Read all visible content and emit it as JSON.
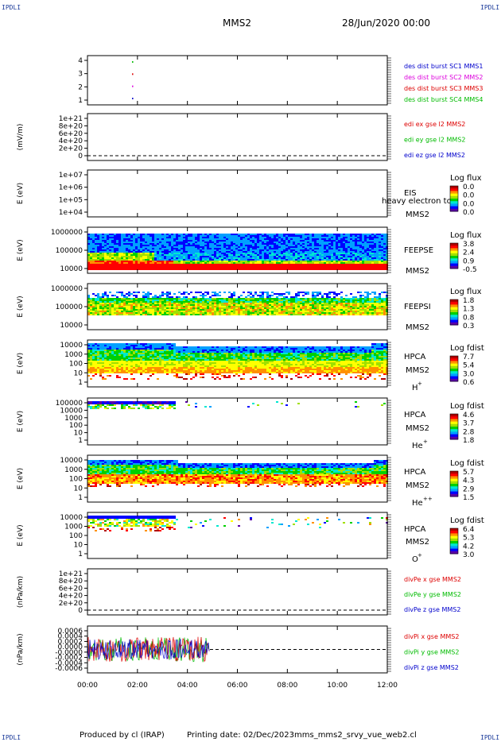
{
  "header": {
    "corner_label": "IPDLI",
    "title": "MMS2",
    "date": "28/Jun/2020 00:00"
  },
  "footer": {
    "produced_by": "Produced by cl (IRAP)",
    "printing_date": "Printing date: 02/Dec/2023",
    "file_name": "mms_mms2_srvy_vue_web2.cl"
  },
  "chart_data": {
    "type": "heatmap",
    "x_ticks": [
      "00:00",
      "02:00",
      "04:00",
      "06:00",
      "08:00",
      "10:00",
      "12:00"
    ],
    "x_range_hours": [
      0,
      12
    ],
    "colorscale": [
      "#5a00a8",
      "#0000ff",
      "#00a0ff",
      "#00e8d0",
      "#00d000",
      "#a0e000",
      "#ffff00",
      "#ff9000",
      "#ff0000",
      "#b00000"
    ],
    "panels": [
      {
        "id": "burst",
        "kind": "markers",
        "yticks": [
          "1",
          "2",
          "3",
          "4"
        ],
        "legend": [
          {
            "text": "des dist burst SC1 MMS1",
            "color": "#0000cc"
          },
          {
            "text": "des dist burst SC2 MMS2",
            "color": "#dd00dd"
          },
          {
            "text": "des dist burst SC3 MMS3",
            "color": "#dd0000"
          },
          {
            "text": "des dist burst SC4 MMS4",
            "color": "#00bb00"
          }
        ],
        "markers": [
          {
            "t": 1.8,
            "y": 1
          },
          {
            "t": 1.8,
            "y": 2
          },
          {
            "t": 1.8,
            "y": 3
          },
          {
            "t": 1.8,
            "y": 4
          }
        ]
      },
      {
        "id": "efield",
        "kind": "lines",
        "ylabel": "(mV/m)",
        "yticks": [
          "0",
          "2e+20",
          "4e+20",
          "6e+20",
          "8e+20",
          "1e+21"
        ],
        "legend": [
          {
            "text": "edi ex gse l2 MMS2",
            "color": "#dd0000"
          },
          {
            "text": "edi ey gse l2 MMS2",
            "color": "#00bb00"
          },
          {
            "text": "edi ez gse l2 MMS2",
            "color": "#0000cc"
          }
        ]
      },
      {
        "id": "eis",
        "kind": "spectrogram",
        "ylabel": "E (eV)",
        "yticks": [
          "1e+04",
          "1e+05",
          "1e+06",
          "1e+07"
        ],
        "instrument": [
          "EIS",
          "MMS2"
        ],
        "overlay_text": "heavy electron to",
        "cb_title": "Log flux",
        "cb_ticks": [
          "0.0",
          "0.0",
          "0.0",
          "0.0"
        ]
      },
      {
        "id": "feepse",
        "kind": "spectrogram",
        "ylabel": "E (eV)",
        "yticks": [
          "10000",
          "100000",
          "1000000"
        ],
        "instrument": [
          "FEEPSE",
          "MMS2"
        ],
        "cb_title": "Log flux",
        "cb_ticks": [
          "3.8",
          "2.4",
          "0.9",
          "-0.5"
        ]
      },
      {
        "id": "feepsi",
        "kind": "spectrogram",
        "ylabel": "E (eV)",
        "yticks": [
          "10000",
          "100000",
          "1000000"
        ],
        "instrument": [
          "FEEPSI",
          "MMS2"
        ],
        "cb_title": "Log flux",
        "cb_ticks": [
          "1.8",
          "1.3",
          "0.8",
          "0.3"
        ]
      },
      {
        "id": "hpca_h",
        "kind": "spectrogram",
        "ylabel": "E (eV)",
        "yticks": [
          "1",
          "10",
          "100",
          "1000",
          "10000"
        ],
        "instrument": [
          "HPCA",
          "MMS2"
        ],
        "species": "H",
        "species_sup": "+",
        "cb_title": "Log fdist",
        "cb_ticks": [
          "7.7",
          "5.4",
          "3.0",
          "0.6"
        ]
      },
      {
        "id": "hpca_he1",
        "kind": "spectrogram",
        "ylabel": "E (eV)",
        "yticks": [
          "1",
          "10",
          "100",
          "1000",
          "10000",
          "100000"
        ],
        "instrument": [
          "HPCA",
          "MMS2"
        ],
        "species": "He",
        "species_sup": "+",
        "cb_title": "Log fdist",
        "cb_ticks": [
          "4.6",
          "3.7",
          "2.8",
          "1.8"
        ]
      },
      {
        "id": "hpca_he2",
        "kind": "spectrogram",
        "ylabel": "E (eV)",
        "yticks": [
          "1",
          "10",
          "100",
          "1000",
          "10000"
        ],
        "instrument": [
          "HPCA",
          "MMS2"
        ],
        "species": "He",
        "species_sup": "++",
        "cb_title": "Log fdist",
        "cb_ticks": [
          "5.7",
          "4.3",
          "2.9",
          "1.5"
        ]
      },
      {
        "id": "hpca_o",
        "kind": "spectrogram",
        "ylabel": "E (eV)",
        "yticks": [
          "1",
          "10",
          "100",
          "1000",
          "10000"
        ],
        "instrument": [
          "HPCA",
          "MMS2"
        ],
        "species": "O",
        "species_sup": "+",
        "cb_title": "Log fdist",
        "cb_ticks": [
          "6.4",
          "5.3",
          "4.2",
          "3.0"
        ]
      },
      {
        "id": "divpe",
        "kind": "lines",
        "ylabel": "(nPa/km)",
        "yticks": [
          "0",
          "2e+20",
          "4e+20",
          "6e+20",
          "8e+20",
          "1e+21"
        ],
        "legend": [
          {
            "text": "divPe x gse MMS2",
            "color": "#dd0000"
          },
          {
            "text": "divPe y gse MMS2",
            "color": "#00bb00"
          },
          {
            "text": "divPe z gse MMS2",
            "color": "#0000cc"
          }
        ]
      },
      {
        "id": "divpi",
        "kind": "noise",
        "ylabel": "(nPa/km)",
        "yticks": [
          "-0.0006",
          "-0.0004",
          "-0.0002",
          "-0.0000",
          "0.0000",
          "0.0002",
          "0.0004",
          "0.0006"
        ],
        "legend": [
          {
            "text": "divPi x gse MMS2",
            "color": "#dd0000"
          },
          {
            "text": "divPi y gse MMS2",
            "color": "#00bb00"
          },
          {
            "text": "divPi z gse MMS2",
            "color": "#0000cc"
          }
        ],
        "data_end_hours": 4.9
      }
    ]
  }
}
